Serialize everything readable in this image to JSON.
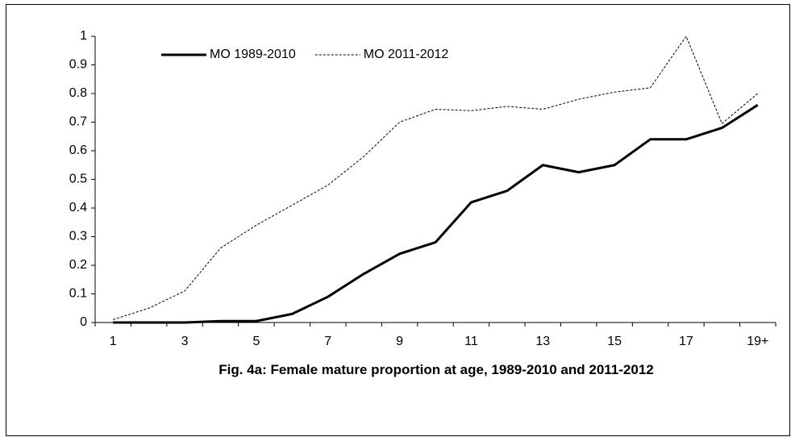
{
  "chart_data": {
    "type": "line",
    "title": "Fig. 4a: Female mature proportion at age, 1989-2010  and 2011-2012",
    "categories": [
      "1",
      null,
      "3",
      null,
      "5",
      null,
      "7",
      null,
      "9",
      null,
      "11",
      null,
      "13",
      null,
      "15",
      null,
      "17",
      null,
      "19+"
    ],
    "series": [
      {
        "name": "MO 1989-2010",
        "color": "#000000",
        "style": "solid",
        "values": [
          0,
          0,
          0,
          0.005,
          0.005,
          0.03,
          0.09,
          0.17,
          0.24,
          0.28,
          0.42,
          0.46,
          0.55,
          0.525,
          0.55,
          0.64,
          0.64,
          0.68,
          0.76
        ]
      },
      {
        "name": "MO 2011-2012",
        "color": "#000000",
        "style": "dashed",
        "values": [
          0.01,
          0.05,
          0.11,
          0.26,
          0.34,
          0.41,
          0.48,
          0.58,
          0.7,
          0.745,
          0.74,
          0.755,
          0.745,
          0.78,
          0.805,
          0.82,
          1,
          0.695,
          0.8
        ]
      }
    ],
    "ylim": [
      0,
      1
    ],
    "yticks": [
      0,
      0.1,
      0.2,
      0.3,
      0.4,
      0.5,
      0.6,
      0.7,
      0.8,
      0.9,
      1
    ],
    "legend": "top-left",
    "grid": false
  }
}
